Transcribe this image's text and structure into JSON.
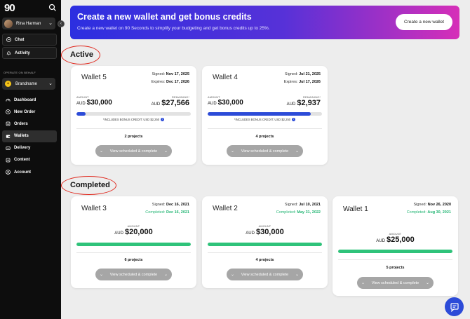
{
  "sidebar": {
    "logo": "90",
    "user_name": "Rina Harman",
    "nav_top": [
      {
        "label": "Chat"
      },
      {
        "label": "Activity"
      }
    ],
    "operate_label": "OPERATE ON BEHALF",
    "brand_name": "Brandname",
    "nav_main": [
      {
        "label": "Dashboard"
      },
      {
        "label": "New Order"
      },
      {
        "label": "Orders"
      },
      {
        "label": "Wallets"
      },
      {
        "label": "Delivery"
      },
      {
        "label": "Content"
      },
      {
        "label": "Account"
      }
    ],
    "active_item": "Wallets"
  },
  "banner": {
    "title": "Create a new wallet and get bonus credits",
    "subtitle": "Create a new wallet on 90 Seconds to simplify your budgeting and get bonus credits up to 25%.",
    "button": "Create a new wallet"
  },
  "sections": {
    "active": "Active",
    "completed": "Completed"
  },
  "labels": {
    "amount": "AMOUNT",
    "remaining": "REMAINING*",
    "signed": "Signed:",
    "expires": "Expires:",
    "completed": "Completed:",
    "currency": "AUD",
    "view_button": "View scheduled & complete"
  },
  "active_wallets": [
    {
      "name": "Wallet 5",
      "signed": "Nov 17, 2025",
      "expires": "Dec 17, 2026",
      "amount": "$30,000",
      "remaining": "$27,566",
      "progress": 0.08,
      "bonus": "*INCLUDES BONUS CREDIT: USD $2,250",
      "projects": "2 projects"
    },
    {
      "name": "Wallet 4",
      "signed": "Jul 21, 2025",
      "expires": "Jul 17, 2026",
      "amount": "$30,000",
      "remaining": "$2,937",
      "progress": 0.9,
      "bonus": "*INCLUDES BONUS CREDIT: USD $2,250",
      "projects": "4 projects"
    }
  ],
  "completed_wallets": [
    {
      "name": "Wallet 3",
      "signed": "Dec 16, 2021",
      "completed": "Dec 16, 2021",
      "amount": "$20,000",
      "progress": 1.0,
      "projects": "6 projects"
    },
    {
      "name": "Wallet 2",
      "signed": "Jul 10, 2021",
      "completed": "May 31, 2022",
      "amount": "$30,000",
      "progress": 1.0,
      "projects": "4 projects"
    },
    {
      "name": "Wallet 1",
      "signed": "Nov 26, 2020",
      "completed": "Aug 30, 2021",
      "amount": "$25,000",
      "progress": 1.0,
      "projects": "5 projects"
    }
  ],
  "colors": {
    "progress_blue": "#2c4bd8",
    "progress_green": "#2fc37a",
    "annotation_red": "#e0261b"
  }
}
